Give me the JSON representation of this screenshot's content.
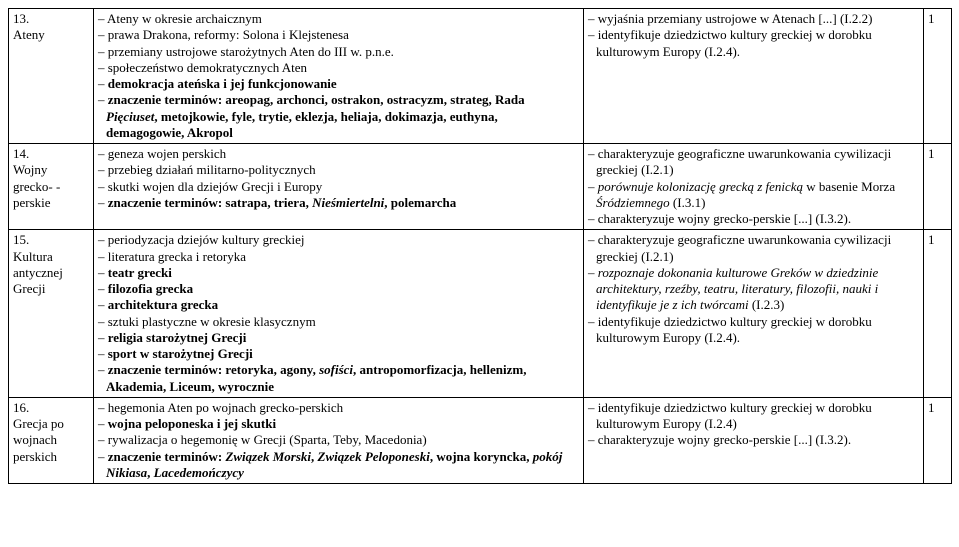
{
  "rows": [
    {
      "num": "13.",
      "title": "Ateny",
      "content": "– Ateny w okresie archaicznym\n– prawa Drakona, reformy: Solona i Klejstenesa\n– przemiany ustrojowe starożytnych Aten do III w. p.n.e.\n– społeczeństwo demokratycznych Aten\n– <b>demokracja ateńska i jej funkcjonowanie</b>\n– <b>znaczenie terminów: areopag, archonci, ostrakon, ostracyzm, strateg, Rada</b> <i><b>Pięciuset</b></i><b>, metojkowie, fyle, trytie, eklezja, heliaja, dokimazja, euthyna, demagogowie, Akropol</b>",
      "goals": "– wyjaśnia przemiany ustrojowe w Atenach [...] (I.2.2)\n– identyfikuje dziedzictwo kultury greckiej w dorobku kulturowym Europy (I.2.4).",
      "count": "1"
    },
    {
      "num": "14.",
      "title": "Wojny grecko- -perskie",
      "content": "– geneza wojen perskich\n– przebieg działań militarno-politycznych\n– skutki wojen dla dziejów Grecji i Europy\n– <b>znaczenie terminów: satrapa, triera, </b><i><b>Nieśmiertelni</b></i><b>, polemarcha</b>",
      "goals": "– charakteryzuje geograficzne uwarunkowania cywilizacji greckiej (I.2.1)\n<i>– porównuje kolonizację grecką z fenicką</i> w basenie Morza <i>Śródziemnego</i> (I.3.1)\n– charakteryzuje wojny grecko-perskie [...] (I.3.2).",
      "count": "1"
    },
    {
      "num": "15.",
      "title": "Kultura antycznej Grecji",
      "content": "– periodyzacja dziejów kultury greckiej\n– literatura grecka i retoryka\n– <b>teatr grecki</b>\n– <b>filozofia grecka</b>\n– <b>architektura grecka</b>\n– sztuki plastyczne w okresie klasycznym\n– <b>religia starożytnej Grecji</b>\n– <b>sport w starożytnej Grecji</b>\n– <b>znaczenie terminów: retoryka, agony, </b><i><b>sofiści</b></i><b>, antropomorfizacja, hellenizm, Akademia, Liceum, wyrocznie</b>",
      "goals": "– charakteryzuje geograficzne uwarunkowania cywilizacji greckiej (I.2.1)\n<i>– rozpoznaje dokonania kulturowe Greków w dziedzinie architektury, rzeźby, teatru, literatury, filozofii, nauki i identyfikuje je z ich twórcami</i> (I.2.3)\n– identyfikuje dziedzictwo kultury greckiej w dorobku kulturowym Europy (I.2.4).",
      "count": "1"
    },
    {
      "num": "16.",
      "title": "Grecja po wojnach perskich",
      "content": "– hegemonia Aten po wojnach grecko-perskich\n– <b>wojna peloponeska i jej skutki</b>\n– rywalizacja o hegemonię w Grecji (Sparta, Teby, Macedonia)\n– <b>znaczenie terminów: </b><i><b>Związek Morski</b></i><b>, </b><i><b>Związek Peloponeski</b></i><b>, wojna koryncka, </b><i><b>pokój Nikiasa</b></i><b>, </b><i><b>Lacedemończycy</b></i>",
      "goals": "– identyfikuje dziedzictwo kultury greckiej w dorobku kulturowym Europy (I.2.4)\n– charakteryzuje wojny grecko-perskie [...] (I.3.2).",
      "count": "1"
    }
  ]
}
